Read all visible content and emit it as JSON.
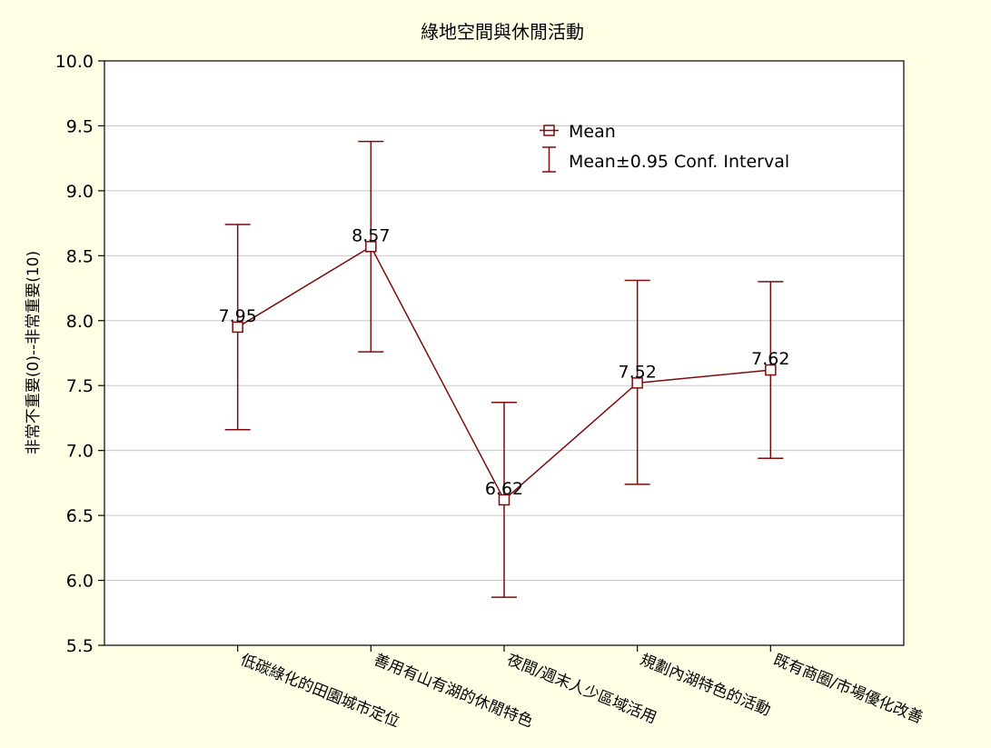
{
  "chart_data": {
    "type": "line",
    "title": "綠地空間與休閒活動",
    "xlabel": "",
    "ylabel": "非常不重要(0)--非常重要(10)",
    "ylim": [
      5.5,
      10.0
    ],
    "yticks": [
      "5.5",
      "6.0",
      "6.5",
      "7.0",
      "7.5",
      "8.0",
      "8.5",
      "9.0",
      "9.5",
      "10.0"
    ],
    "ytick_values": [
      5.5,
      6.0,
      6.5,
      7.0,
      7.5,
      8.0,
      8.5,
      9.0,
      9.5,
      10.0
    ],
    "grid": true,
    "legend_position": "top-right",
    "categories": [
      "低碳綠化的田園城市定位",
      "善用有山有湖的休閒特色",
      "夜間/週末人少區域活用",
      "規劃內湖特色的活動",
      "既有商圈/市場優化改善"
    ],
    "series": [
      {
        "name": "Mean",
        "values": [
          7.95,
          8.57,
          6.62,
          7.52,
          7.62
        ],
        "value_labels": [
          "7.95",
          "8.57",
          "6.62",
          "7.52",
          "7.62"
        ],
        "lower": [
          7.16,
          7.76,
          5.87,
          6.74,
          6.94
        ],
        "upper": [
          8.74,
          9.38,
          7.37,
          8.31,
          8.3
        ]
      }
    ],
    "legend": [
      {
        "label": "Mean",
        "marker": "square"
      },
      {
        "label": "Mean±0.95 Conf. Interval",
        "marker": "whisker"
      }
    ],
    "colors": {
      "series": "#7B0C0C",
      "background": "#FFFFE6",
      "plot": "#FFFFFF",
      "grid": "#C8C8C8"
    }
  }
}
